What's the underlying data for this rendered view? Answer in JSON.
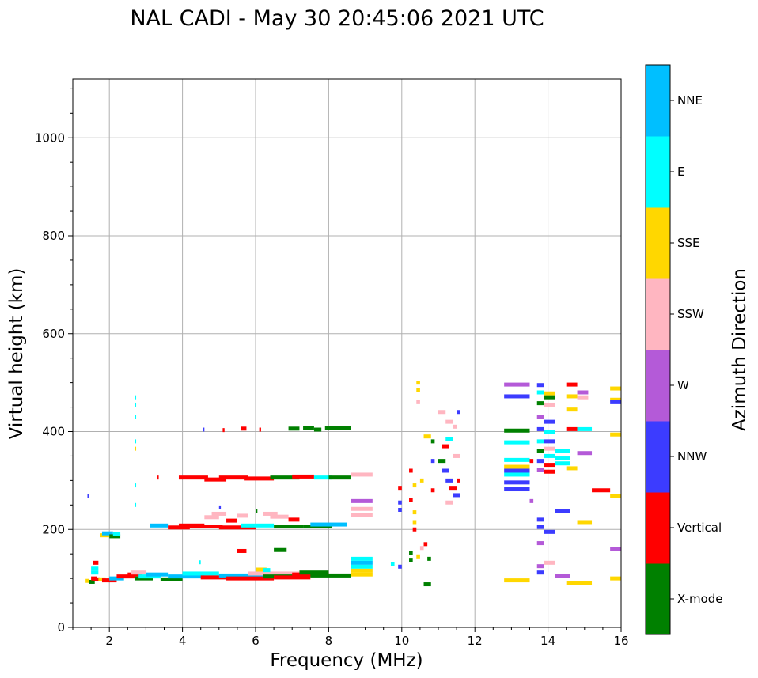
{
  "chart_data": {
    "type": "scatter",
    "title": "NAL CADI - May 30 20:45:06 2021 UTC",
    "xlabel": "Frequency (MHz)",
    "ylabel": "Virtual height (km)",
    "xlim": [
      1,
      16
    ],
    "ylim": [
      0,
      1120
    ],
    "x_ticks": [
      2,
      4,
      6,
      8,
      10,
      12,
      14,
      16
    ],
    "x_tick_labels": [
      "2",
      "4",
      "6",
      "8",
      "10",
      "12",
      "14",
      "16"
    ],
    "y_ticks": [
      0,
      200,
      400,
      600,
      800,
      1000
    ],
    "y_tick_labels": [
      "0",
      "200",
      "400",
      "600",
      "800",
      "1000"
    ],
    "grid": true,
    "colorbar": {
      "label": "Azimuth Direction",
      "categories": [
        "X-mode",
        "Vertical",
        "NNW",
        "W",
        "SSW",
        "SSE",
        "E",
        "NNE"
      ],
      "colors": [
        "#008000",
        "#ff0000",
        "#3c3cff",
        "#b45ad8",
        "#ffb6c1",
        "#ffd700",
        "#00ffff",
        "#00bfff"
      ]
    },
    "points_format": [
      "x_start_MHz",
      "x_end_MHz",
      "height_km",
      "category_index"
    ],
    "points": [
      [
        1.35,
        1.45,
        95,
        5
      ],
      [
        1.45,
        1.6,
        93,
        0
      ],
      [
        1.5,
        1.65,
        100,
        1
      ],
      [
        1.55,
        1.75,
        98,
        1
      ],
      [
        1.5,
        1.7,
        112,
        6
      ],
      [
        1.5,
        1.7,
        120,
        6
      ],
      [
        1.55,
        1.7,
        132,
        1
      ],
      [
        1.7,
        1.9,
        98,
        5
      ],
      [
        1.8,
        2.2,
        96,
        1
      ],
      [
        2.0,
        2.4,
        100,
        7
      ],
      [
        2.2,
        2.7,
        104,
        1
      ],
      [
        2.5,
        2.9,
        108,
        1
      ],
      [
        2.7,
        3.2,
        100,
        0
      ],
      [
        2.6,
        3.0,
        112,
        4
      ],
      [
        2.8,
        3.4,
        104,
        6
      ],
      [
        3.0,
        3.6,
        108,
        7
      ],
      [
        3.4,
        4.0,
        98,
        0
      ],
      [
        3.6,
        4.6,
        104,
        7
      ],
      [
        4.0,
        5.0,
        110,
        6
      ],
      [
        4.5,
        5.5,
        102,
        1
      ],
      [
        5.0,
        6.2,
        106,
        7
      ],
      [
        5.2,
        6.5,
        100,
        1
      ],
      [
        5.8,
        7.2,
        110,
        4
      ],
      [
        6.2,
        7.2,
        104,
        0
      ],
      [
        6.5,
        7.5,
        102,
        1
      ],
      [
        7.0,
        8.0,
        108,
        1
      ],
      [
        7.2,
        8.0,
        112,
        0
      ],
      [
        7.5,
        8.6,
        106,
        0
      ],
      [
        6.0,
        6.3,
        118,
        5
      ],
      [
        1.75,
        2.0,
        188,
        5
      ],
      [
        1.8,
        2.1,
        192,
        7
      ],
      [
        2.0,
        2.3,
        186,
        0
      ],
      [
        2.1,
        2.3,
        190,
        6
      ],
      [
        3.1,
        3.6,
        208,
        7
      ],
      [
        3.6,
        4.2,
        204,
        1
      ],
      [
        3.9,
        4.6,
        208,
        1
      ],
      [
        4.2,
        5.1,
        206,
        1
      ],
      [
        5.0,
        6.0,
        204,
        1
      ],
      [
        5.6,
        6.5,
        208,
        6
      ],
      [
        6.5,
        7.3,
        206,
        0
      ],
      [
        7.3,
        8.1,
        206,
        0
      ],
      [
        7.5,
        8.5,
        210,
        7
      ],
      [
        4.6,
        5.0,
        225,
        4
      ],
      [
        4.8,
        5.2,
        232,
        4
      ],
      [
        5.2,
        5.5,
        218,
        1
      ],
      [
        5.5,
        5.8,
        228,
        4
      ],
      [
        6.2,
        6.6,
        232,
        4
      ],
      [
        6.4,
        6.9,
        226,
        4
      ],
      [
        6.9,
        7.2,
        220,
        1
      ],
      [
        3.9,
        4.7,
        306,
        1
      ],
      [
        4.6,
        5.2,
        302,
        1
      ],
      [
        5.0,
        5.8,
        306,
        1
      ],
      [
        5.7,
        6.5,
        304,
        1
      ],
      [
        6.4,
        7.2,
        306,
        0
      ],
      [
        7.0,
        7.6,
        308,
        1
      ],
      [
        7.6,
        8.1,
        306,
        6
      ],
      [
        8.0,
        8.6,
        306,
        0
      ],
      [
        3.3,
        3.35,
        306,
        1
      ],
      [
        6.9,
        7.2,
        406,
        0
      ],
      [
        7.3,
        7.6,
        408,
        0
      ],
      [
        7.6,
        7.8,
        404,
        0
      ],
      [
        7.9,
        8.6,
        408,
        0
      ],
      [
        5.6,
        5.75,
        406,
        1
      ],
      [
        6.1,
        6.15,
        404,
        1
      ],
      [
        5.1,
        5.15,
        403,
        1
      ],
      [
        5.5,
        5.75,
        156,
        1
      ],
      [
        6.5,
        6.85,
        158,
        0
      ],
      [
        6.2,
        6.4,
        117,
        6
      ],
      [
        8.6,
        9.2,
        108,
        5
      ],
      [
        8.6,
        9.2,
        116,
        5
      ],
      [
        8.6,
        9.2,
        124,
        6
      ],
      [
        8.6,
        9.2,
        132,
        7
      ],
      [
        8.6,
        9.2,
        140,
        6
      ],
      [
        8.6,
        9.2,
        230,
        4
      ],
      [
        8.6,
        9.2,
        242,
        4
      ],
      [
        8.6,
        9.2,
        258,
        3
      ],
      [
        8.6,
        9.2,
        312,
        4
      ],
      [
        9.7,
        9.8,
        130,
        6
      ],
      [
        9.9,
        10.0,
        124,
        2
      ],
      [
        10.2,
        10.3,
        138,
        0
      ],
      [
        10.2,
        10.3,
        152,
        0
      ],
      [
        10.4,
        10.5,
        145,
        5
      ],
      [
        10.5,
        10.6,
        162,
        4
      ],
      [
        10.6,
        10.7,
        170,
        1
      ],
      [
        10.7,
        10.8,
        140,
        0
      ],
      [
        10.6,
        10.8,
        88,
        0
      ],
      [
        10.3,
        10.4,
        200,
        1
      ],
      [
        10.3,
        10.4,
        215,
        5
      ],
      [
        10.3,
        10.4,
        235,
        5
      ],
      [
        9.9,
        10.0,
        240,
        2
      ],
      [
        9.9,
        10.0,
        255,
        2
      ],
      [
        9.9,
        10.0,
        285,
        1
      ],
      [
        10.2,
        10.3,
        260,
        1
      ],
      [
        10.2,
        10.3,
        320,
        1
      ],
      [
        10.3,
        10.4,
        290,
        5
      ],
      [
        10.5,
        10.6,
        300,
        5
      ],
      [
        10.8,
        10.9,
        340,
        2
      ],
      [
        10.8,
        10.9,
        380,
        0
      ],
      [
        10.8,
        10.9,
        280,
        1
      ],
      [
        10.6,
        10.8,
        390,
        5
      ],
      [
        10.4,
        10.5,
        460,
        4
      ],
      [
        10.4,
        10.5,
        500,
        5
      ],
      [
        10.4,
        10.5,
        485,
        5
      ],
      [
        11.0,
        11.2,
        440,
        4
      ],
      [
        11.2,
        11.4,
        420,
        4
      ],
      [
        11.2,
        11.4,
        385,
        6
      ],
      [
        11.1,
        11.3,
        370,
        1
      ],
      [
        11.0,
        11.2,
        340,
        0
      ],
      [
        11.1,
        11.3,
        320,
        2
      ],
      [
        11.2,
        11.4,
        300,
        2
      ],
      [
        11.3,
        11.5,
        285,
        1
      ],
      [
        11.4,
        11.6,
        270,
        2
      ],
      [
        11.2,
        11.4,
        255,
        4
      ],
      [
        11.4,
        11.5,
        410,
        4
      ],
      [
        11.5,
        11.6,
        440,
        2
      ],
      [
        11.5,
        11.6,
        300,
        1
      ],
      [
        11.4,
        11.6,
        350,
        4
      ],
      [
        12.8,
        13.5,
        496,
        3
      ],
      [
        12.8,
        13.5,
        472,
        2
      ],
      [
        12.8,
        13.5,
        402,
        0
      ],
      [
        12.8,
        13.5,
        378,
        6
      ],
      [
        12.8,
        13.5,
        342,
        6
      ],
      [
        12.8,
        13.5,
        328,
        5
      ],
      [
        12.8,
        13.5,
        320,
        2
      ],
      [
        12.8,
        13.5,
        312,
        6
      ],
      [
        12.8,
        13.5,
        296,
        2
      ],
      [
        12.8,
        13.5,
        282,
        2
      ],
      [
        12.8,
        13.5,
        96,
        5
      ],
      [
        13.5,
        13.6,
        258,
        3
      ],
      [
        13.5,
        13.6,
        340,
        1
      ],
      [
        13.7,
        13.9,
        495,
        2
      ],
      [
        13.7,
        13.9,
        480,
        6
      ],
      [
        13.7,
        13.9,
        458,
        0
      ],
      [
        13.7,
        13.9,
        430,
        3
      ],
      [
        13.7,
        13.9,
        405,
        2
      ],
      [
        13.7,
        13.9,
        380,
        6
      ],
      [
        13.7,
        13.9,
        360,
        0
      ],
      [
        13.7,
        13.9,
        340,
        2
      ],
      [
        13.7,
        13.9,
        322,
        3
      ],
      [
        13.7,
        13.9,
        220,
        2
      ],
      [
        13.7,
        13.9,
        205,
        2
      ],
      [
        13.7,
        13.9,
        172,
        3
      ],
      [
        13.7,
        13.9,
        125,
        3
      ],
      [
        13.7,
        13.9,
        112,
        2
      ],
      [
        13.9,
        14.2,
        478,
        5
      ],
      [
        13.9,
        14.2,
        470,
        0
      ],
      [
        13.9,
        14.2,
        455,
        4
      ],
      [
        13.9,
        14.2,
        420,
        2
      ],
      [
        13.9,
        14.2,
        400,
        6
      ],
      [
        13.9,
        14.2,
        380,
        2
      ],
      [
        13.9,
        14.2,
        365,
        4
      ],
      [
        13.9,
        14.2,
        350,
        6
      ],
      [
        13.9,
        14.2,
        332,
        1
      ],
      [
        13.9,
        14.2,
        318,
        1
      ],
      [
        13.9,
        14.2,
        195,
        2
      ],
      [
        13.9,
        14.2,
        132,
        4
      ],
      [
        14.2,
        14.6,
        360,
        6
      ],
      [
        14.2,
        14.6,
        345,
        6
      ],
      [
        14.2,
        14.6,
        335,
        6
      ],
      [
        14.2,
        14.6,
        238,
        2
      ],
      [
        14.2,
        14.6,
        105,
        3
      ],
      [
        14.5,
        14.8,
        496,
        1
      ],
      [
        14.5,
        14.8,
        472,
        5
      ],
      [
        14.5,
        14.8,
        445,
        5
      ],
      [
        14.5,
        14.8,
        405,
        1
      ],
      [
        14.5,
        14.8,
        325,
        5
      ],
      [
        14.5,
        15.2,
        90,
        5
      ],
      [
        14.8,
        15.1,
        480,
        3
      ],
      [
        14.8,
        15.1,
        470,
        4
      ],
      [
        14.8,
        15.2,
        405,
        6
      ],
      [
        14.8,
        15.2,
        356,
        3
      ],
      [
        14.8,
        15.2,
        215,
        5
      ],
      [
        15.2,
        15.7,
        280,
        1
      ],
      [
        15.7,
        16.0,
        488,
        5
      ],
      [
        15.7,
        16.0,
        465,
        5
      ],
      [
        15.7,
        16.0,
        460,
        2
      ],
      [
        15.7,
        16.0,
        394,
        5
      ],
      [
        15.7,
        16.0,
        268,
        5
      ],
      [
        15.7,
        16.0,
        160,
        3
      ],
      [
        15.7,
        16.0,
        100,
        5
      ],
      [
        2.7,
        2.72,
        470,
        6
      ],
      [
        2.7,
        2.72,
        455,
        6
      ],
      [
        2.7,
        2.72,
        430,
        6
      ],
      [
        2.7,
        2.72,
        380,
        6
      ],
      [
        2.7,
        2.72,
        365,
        5
      ],
      [
        2.7,
        2.72,
        290,
        6
      ],
      [
        2.7,
        2.72,
        250,
        6
      ],
      [
        1.4,
        1.42,
        268,
        2
      ],
      [
        4.55,
        4.6,
        404,
        2
      ],
      [
        4.45,
        4.5,
        133,
        6
      ],
      [
        5.0,
        5.05,
        245,
        2
      ],
      [
        6.0,
        6.05,
        238,
        0
      ]
    ]
  }
}
